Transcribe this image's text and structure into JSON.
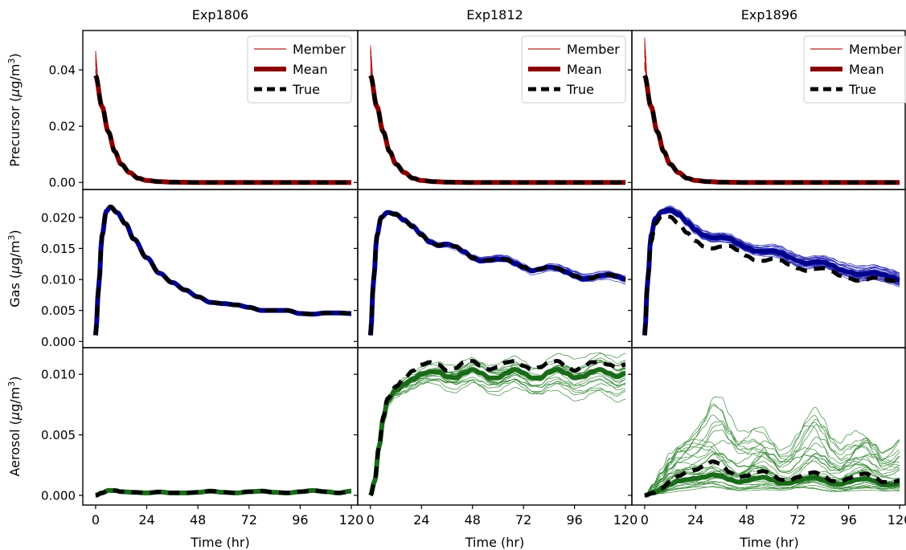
{
  "chart_data": {
    "type": "line",
    "columns": [
      "Exp1806",
      "Exp1812",
      "Exp1896"
    ],
    "rows": [
      {
        "ylabel_main": "Precursor (",
        "ylabel_mu": "μ",
        "ylabel_rest": "g/m",
        "ylabel_sup": "3",
        "ylabel_close": ")",
        "ylim": [
          -0.0025,
          0.054
        ],
        "yticks": [
          0.0,
          0.02,
          0.04
        ],
        "ytick_labels": [
          "0.00",
          "0.02",
          "0.04"
        ],
        "member_color": "#b22222",
        "mean_color": "#8b0000"
      },
      {
        "ylabel_main": "Gas (",
        "ylabel_mu": "μ",
        "ylabel_rest": "g/m",
        "ylabel_sup": "3",
        "ylabel_close": ")",
        "ylim": [
          -0.001,
          0.0245
        ],
        "yticks": [
          0.0,
          0.005,
          0.01,
          0.015,
          0.02
        ],
        "ytick_labels": [
          "0.000",
          "0.005",
          "0.010",
          "0.015",
          "0.020"
        ],
        "member_color": "#3333bb",
        "mean_color": "#00008b"
      },
      {
        "ylabel_main": "Aerosol (",
        "ylabel_mu": "μ",
        "ylabel_rest": "g/m",
        "ylabel_sup": "3",
        "ylabel_close": ")",
        "ylim": [
          -0.0008,
          0.0122
        ],
        "yticks": [
          0.0,
          0.005,
          0.01
        ],
        "ytick_labels": [
          "0.000",
          "0.005",
          "0.010"
        ],
        "member_color": "#3a8a3a",
        "mean_color": "#1a6b1a"
      }
    ],
    "xlim": [
      -6,
      123
    ],
    "xticks": [
      0,
      24,
      48,
      72,
      96,
      120
    ],
    "xtick_labels": [
      "0",
      "24",
      "48",
      "72",
      "96",
      "120"
    ],
    "xlabel": "Time (hr)",
    "legend": {
      "placement": "top-right",
      "entries": [
        "Member",
        "Mean",
        "True"
      ]
    },
    "series_points": {
      "precursor_true": [
        [
          0,
          0.038
        ],
        [
          3,
          0.027
        ],
        [
          6,
          0.018
        ],
        [
          9,
          0.011
        ],
        [
          12,
          0.0065
        ],
        [
          16,
          0.0035
        ],
        [
          20,
          0.0015
        ],
        [
          24,
          0.0007
        ],
        [
          30,
          0.0003
        ],
        [
          36,
          0.0001
        ],
        [
          48,
          0.0
        ],
        [
          72,
          0.0
        ],
        [
          96,
          0.0
        ],
        [
          120,
          0.0
        ]
      ],
      "gas_1806_true": [
        [
          0,
          0.001
        ],
        [
          1.5,
          0.009
        ],
        [
          3,
          0.017
        ],
        [
          5,
          0.021
        ],
        [
          7,
          0.0217
        ],
        [
          10,
          0.0208
        ],
        [
          14,
          0.019
        ],
        [
          18,
          0.0165
        ],
        [
          24,
          0.0135
        ],
        [
          30,
          0.011
        ],
        [
          36,
          0.0095
        ],
        [
          42,
          0.0083
        ],
        [
          48,
          0.0072
        ],
        [
          54,
          0.0063
        ],
        [
          60,
          0.0061
        ],
        [
          66,
          0.0059
        ],
        [
          72,
          0.0055
        ],
        [
          78,
          0.005
        ],
        [
          84,
          0.005
        ],
        [
          90,
          0.005
        ],
        [
          96,
          0.0045
        ],
        [
          102,
          0.0044
        ],
        [
          108,
          0.0046
        ],
        [
          114,
          0.0046
        ],
        [
          120,
          0.0045
        ]
      ],
      "gas_1812_true": [
        [
          0,
          0.001
        ],
        [
          1.5,
          0.01
        ],
        [
          3,
          0.017
        ],
        [
          5,
          0.02
        ],
        [
          8,
          0.0208
        ],
        [
          12,
          0.0205
        ],
        [
          16,
          0.0195
        ],
        [
          20,
          0.0185
        ],
        [
          24,
          0.0172
        ],
        [
          28,
          0.016
        ],
        [
          32,
          0.0155
        ],
        [
          36,
          0.0157
        ],
        [
          40,
          0.0153
        ],
        [
          44,
          0.0145
        ],
        [
          48,
          0.0135
        ],
        [
          52,
          0.013
        ],
        [
          56,
          0.0131
        ],
        [
          60,
          0.0133
        ],
        [
          64,
          0.0132
        ],
        [
          68,
          0.0126
        ],
        [
          72,
          0.012
        ],
        [
          76,
          0.0114
        ],
        [
          80,
          0.0117
        ],
        [
          84,
          0.012
        ],
        [
          88,
          0.0118
        ],
        [
          92,
          0.0112
        ],
        [
          96,
          0.0106
        ],
        [
          100,
          0.0101
        ],
        [
          104,
          0.0102
        ],
        [
          108,
          0.0106
        ],
        [
          112,
          0.0108
        ],
        [
          116,
          0.0105
        ],
        [
          120,
          0.01
        ]
      ],
      "gas_1896_true": [
        [
          0,
          0.001
        ],
        [
          1.5,
          0.01
        ],
        [
          3,
          0.016
        ],
        [
          5,
          0.019
        ],
        [
          8,
          0.0202
        ],
        [
          12,
          0.0201
        ],
        [
          16,
          0.019
        ],
        [
          20,
          0.0175
        ],
        [
          24,
          0.0162
        ],
        [
          28,
          0.0153
        ],
        [
          32,
          0.015
        ],
        [
          36,
          0.0153
        ],
        [
          40,
          0.0154
        ],
        [
          44,
          0.0147
        ],
        [
          48,
          0.0138
        ],
        [
          52,
          0.0131
        ],
        [
          56,
          0.013
        ],
        [
          60,
          0.0133
        ],
        [
          64,
          0.0131
        ],
        [
          68,
          0.0124
        ],
        [
          72,
          0.0118
        ],
        [
          76,
          0.0114
        ],
        [
          80,
          0.0117
        ],
        [
          84,
          0.0118
        ],
        [
          88,
          0.0113
        ],
        [
          92,
          0.0106
        ],
        [
          96,
          0.0102
        ],
        [
          100,
          0.0098
        ],
        [
          104,
          0.01
        ],
        [
          108,
          0.0103
        ],
        [
          112,
          0.0101
        ],
        [
          116,
          0.0098
        ],
        [
          120,
          0.0096
        ]
      ],
      "gas_1896_mean": [
        [
          0,
          0.001
        ],
        [
          1.5,
          0.01
        ],
        [
          3,
          0.017
        ],
        [
          5,
          0.0198
        ],
        [
          8,
          0.0209
        ],
        [
          12,
          0.0212
        ],
        [
          16,
          0.0205
        ],
        [
          20,
          0.0192
        ],
        [
          24,
          0.018
        ],
        [
          28,
          0.0171
        ],
        [
          32,
          0.0167
        ],
        [
          36,
          0.0168
        ],
        [
          40,
          0.0166
        ],
        [
          44,
          0.0158
        ],
        [
          48,
          0.0151
        ],
        [
          52,
          0.0146
        ],
        [
          56,
          0.0145
        ],
        [
          60,
          0.0146
        ],
        [
          64,
          0.0143
        ],
        [
          68,
          0.0136
        ],
        [
          72,
          0.013
        ],
        [
          76,
          0.0126
        ],
        [
          80,
          0.0128
        ],
        [
          84,
          0.0128
        ],
        [
          88,
          0.0123
        ],
        [
          92,
          0.0116
        ],
        [
          96,
          0.0112
        ],
        [
          100,
          0.0108
        ],
        [
          104,
          0.0109
        ],
        [
          108,
          0.0111
        ],
        [
          112,
          0.0108
        ],
        [
          116,
          0.0104
        ],
        [
          120,
          0.0099
        ]
      ],
      "aer_1806_true": [
        [
          0,
          0.0
        ],
        [
          3,
          0.0002
        ],
        [
          6,
          0.0004
        ],
        [
          9,
          0.0004
        ],
        [
          12,
          0.0003
        ],
        [
          18,
          0.00025
        ],
        [
          24,
          0.0002
        ],
        [
          30,
          0.00028
        ],
        [
          36,
          0.0002
        ],
        [
          42,
          0.0002
        ],
        [
          48,
          0.00025
        ],
        [
          54,
          0.00035
        ],
        [
          60,
          0.00025
        ],
        [
          66,
          0.0002
        ],
        [
          72,
          0.0003
        ],
        [
          78,
          0.00035
        ],
        [
          84,
          0.00025
        ],
        [
          90,
          0.0002
        ],
        [
          96,
          0.0003
        ],
        [
          102,
          0.0004
        ],
        [
          108,
          0.0003
        ],
        [
          114,
          0.0002
        ],
        [
          120,
          0.00035
        ]
      ],
      "aer_1812_true": [
        [
          0,
          0.0
        ],
        [
          2,
          0.0012
        ],
        [
          4,
          0.004
        ],
        [
          6,
          0.0065
        ],
        [
          8,
          0.008
        ],
        [
          12,
          0.009
        ],
        [
          16,
          0.0097
        ],
        [
          20,
          0.0103
        ],
        [
          24,
          0.0108
        ],
        [
          28,
          0.011
        ],
        [
          32,
          0.0108
        ],
        [
          36,
          0.0103
        ],
        [
          40,
          0.0105
        ],
        [
          44,
          0.011
        ],
        [
          48,
          0.0111
        ],
        [
          52,
          0.0107
        ],
        [
          56,
          0.0104
        ],
        [
          60,
          0.0106
        ],
        [
          64,
          0.011
        ],
        [
          68,
          0.0111
        ],
        [
          72,
          0.0107
        ],
        [
          76,
          0.0104
        ],
        [
          80,
          0.0106
        ],
        [
          84,
          0.011
        ],
        [
          88,
          0.0111
        ],
        [
          92,
          0.0107
        ],
        [
          96,
          0.0103
        ],
        [
          100,
          0.0106
        ],
        [
          104,
          0.011
        ],
        [
          108,
          0.011
        ],
        [
          112,
          0.0108
        ],
        [
          116,
          0.0106
        ],
        [
          120,
          0.0108
        ]
      ],
      "aer_1812_mean": [
        [
          0,
          0.0
        ],
        [
          2,
          0.0012
        ],
        [
          4,
          0.004
        ],
        [
          6,
          0.0063
        ],
        [
          8,
          0.0078
        ],
        [
          12,
          0.0087
        ],
        [
          16,
          0.0092
        ],
        [
          20,
          0.0096
        ],
        [
          24,
          0.01
        ],
        [
          28,
          0.0102
        ],
        [
          32,
          0.0102
        ],
        [
          36,
          0.0098
        ],
        [
          40,
          0.0097
        ],
        [
          44,
          0.0101
        ],
        [
          48,
          0.0104
        ],
        [
          52,
          0.0101
        ],
        [
          56,
          0.0097
        ],
        [
          60,
          0.0097
        ],
        [
          64,
          0.0101
        ],
        [
          68,
          0.0104
        ],
        [
          72,
          0.0101
        ],
        [
          76,
          0.0097
        ],
        [
          80,
          0.0097
        ],
        [
          84,
          0.0102
        ],
        [
          88,
          0.0104
        ],
        [
          92,
          0.0101
        ],
        [
          96,
          0.0097
        ],
        [
          100,
          0.0098
        ],
        [
          104,
          0.0102
        ],
        [
          108,
          0.0104
        ],
        [
          112,
          0.0101
        ],
        [
          116,
          0.0098
        ],
        [
          120,
          0.0101
        ]
      ],
      "aer_1896_true": [
        [
          0,
          0.0
        ],
        [
          4,
          0.0002
        ],
        [
          8,
          0.0006
        ],
        [
          12,
          0.0011
        ],
        [
          16,
          0.0016
        ],
        [
          20,
          0.0019
        ],
        [
          24,
          0.0021
        ],
        [
          28,
          0.0024
        ],
        [
          32,
          0.0028
        ],
        [
          36,
          0.0026
        ],
        [
          40,
          0.0019
        ],
        [
          44,
          0.0015
        ],
        [
          48,
          0.0016
        ],
        [
          52,
          0.0019
        ],
        [
          56,
          0.002
        ],
        [
          60,
          0.0017
        ],
        [
          64,
          0.0013
        ],
        [
          68,
          0.0012
        ],
        [
          72,
          0.0015
        ],
        [
          76,
          0.0018
        ],
        [
          80,
          0.0019
        ],
        [
          84,
          0.0016
        ],
        [
          88,
          0.0012
        ],
        [
          92,
          0.0011
        ],
        [
          96,
          0.0014
        ],
        [
          100,
          0.0017
        ],
        [
          104,
          0.0018
        ],
        [
          108,
          0.0015
        ],
        [
          112,
          0.0011
        ],
        [
          116,
          0.0011
        ],
        [
          120,
          0.0012
        ]
      ],
      "aer_1896_mean": [
        [
          0,
          0.0
        ],
        [
          4,
          0.0002
        ],
        [
          8,
          0.0005
        ],
        [
          12,
          0.0009
        ],
        [
          16,
          0.0012
        ],
        [
          20,
          0.0013
        ],
        [
          24,
          0.0014
        ],
        [
          28,
          0.0015
        ],
        [
          32,
          0.0017
        ],
        [
          36,
          0.0016
        ],
        [
          40,
          0.0013
        ],
        [
          44,
          0.0011
        ],
        [
          48,
          0.0012
        ],
        [
          52,
          0.0014
        ],
        [
          56,
          0.0015
        ],
        [
          60,
          0.0013
        ],
        [
          64,
          0.001
        ],
        [
          68,
          0.001
        ],
        [
          72,
          0.0012
        ],
        [
          76,
          0.0014
        ],
        [
          80,
          0.0015
        ],
        [
          84,
          0.0013
        ],
        [
          88,
          0.001
        ],
        [
          92,
          0.0009
        ],
        [
          96,
          0.0011
        ],
        [
          100,
          0.0013
        ],
        [
          104,
          0.0014
        ],
        [
          108,
          0.0012
        ],
        [
          112,
          0.0009
        ],
        [
          116,
          0.0009
        ],
        [
          120,
          0.001
        ]
      ]
    },
    "members": {
      "precursor_1806": {
        "count": 20,
        "peak_max": 0.047
      },
      "precursor_1812": {
        "count": 20,
        "peak_max": 0.049
      },
      "precursor_1896": {
        "count": 20,
        "peak_max": 0.052
      },
      "gas_1812": {
        "count": 20,
        "end_range": [
          0.0095,
          0.0128
        ]
      },
      "gas_1896": {
        "count": 30,
        "end_range": [
          0.0085,
          0.0118
        ]
      },
      "aer_1812": {
        "count": 20,
        "end_range": [
          0.0075,
          0.0118
        ]
      },
      "aer_1896": {
        "count": 30,
        "max_peak": 0.0077
      }
    }
  }
}
